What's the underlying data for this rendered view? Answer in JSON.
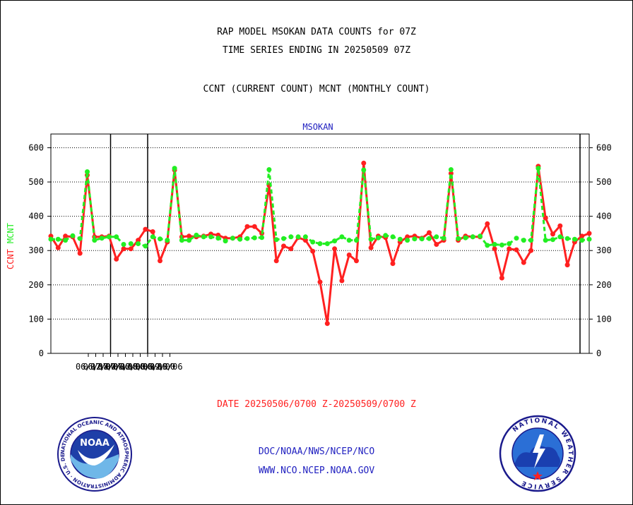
{
  "header": {
    "title_line1": "RAP MODEL MSOKAN DATA COUNTS for 07Z",
    "title_line2": "TIME SERIES ENDING IN 20250509 07Z",
    "subtitle": "CCNT (CURRENT COUNT) MCNT (MONTHLY COUNT)"
  },
  "footer": {
    "date_range": "DATE 20250506/0700 Z-20250509/0700 Z",
    "org_path": "DOC/NOAA/NWS/NCEP/NCO",
    "website": "WWW.NCO.NCEP.NOAA.GOV"
  },
  "logos": {
    "noaa_text": "NOAA",
    "noaa_ring_text": "NATIONAL OCEANIC AND ATMOSPHERIC ADMINISTRATION · U.S. DEPARTMENT OF COMMERCE ·",
    "nws_ring_text": "NATIONAL WEATHER SERVICE"
  },
  "colors": {
    "ccnt": "#ff2020",
    "mcnt": "#22ee22",
    "plot_title": "#2020c0",
    "footer_date": "#ff2020",
    "footer_links": "#2020c0"
  },
  "chart_data": {
    "type": "line",
    "title": "MSOKAN",
    "ylabel_ccnt": "CCNT",
    "ylabel_mcnt": "MCNT",
    "ylim": [
      0,
      640
    ],
    "yticks": [
      0,
      100,
      200,
      300,
      400,
      500,
      600
    ],
    "ytick_labels": [
      "0",
      "100",
      "200",
      "300",
      "400",
      "500",
      "600"
    ],
    "xtick_labels": [
      "06/12",
      "06/18",
      "07/00",
      "07/06",
      "07/12",
      "07/18",
      "08/00",
      "08/06",
      "08/12",
      "08/18",
      "09/00",
      "09/06"
    ],
    "grid": "horizontal dotted",
    "series": [
      {
        "name": "CCNT",
        "values": [
          342,
          308,
          342,
          340,
          292,
          520,
          340,
          340,
          342,
          275,
          305,
          305,
          330,
          362,
          355,
          270,
          325,
          535,
          340,
          342,
          340,
          342,
          348,
          345,
          336,
          336,
          340,
          370,
          370,
          350,
          490,
          270,
          313,
          305,
          338,
          330,
          298,
          208,
          87,
          305,
          212,
          287,
          270,
          555,
          308,
          342,
          338,
          262,
          325,
          340,
          342,
          336,
          352,
          318,
          330,
          525,
          330,
          342,
          340,
          340,
          378,
          305,
          220,
          305,
          302,
          265,
          300,
          546,
          395,
          348,
          372,
          258,
          325,
          342,
          350
        ]
      },
      {
        "name": "MCNT",
        "values": [
          333,
          333,
          330,
          343,
          335,
          530,
          330,
          336,
          340,
          340,
          318,
          320,
          320,
          313,
          340,
          334,
          330,
          540,
          330,
          330,
          345,
          340,
          340,
          336,
          328,
          336,
          333,
          335,
          337,
          338,
          536,
          332,
          335,
          340,
          340,
          340,
          325,
          320,
          320,
          328,
          340,
          330,
          330,
          535,
          333,
          337,
          344,
          340,
          333,
          330,
          334,
          334,
          335,
          340,
          336,
          536,
          335,
          337,
          340,
          342,
          315,
          318,
          316,
          320,
          336,
          330,
          330,
          540,
          330,
          332,
          340,
          335,
          333,
          330,
          333
        ]
      }
    ]
  }
}
